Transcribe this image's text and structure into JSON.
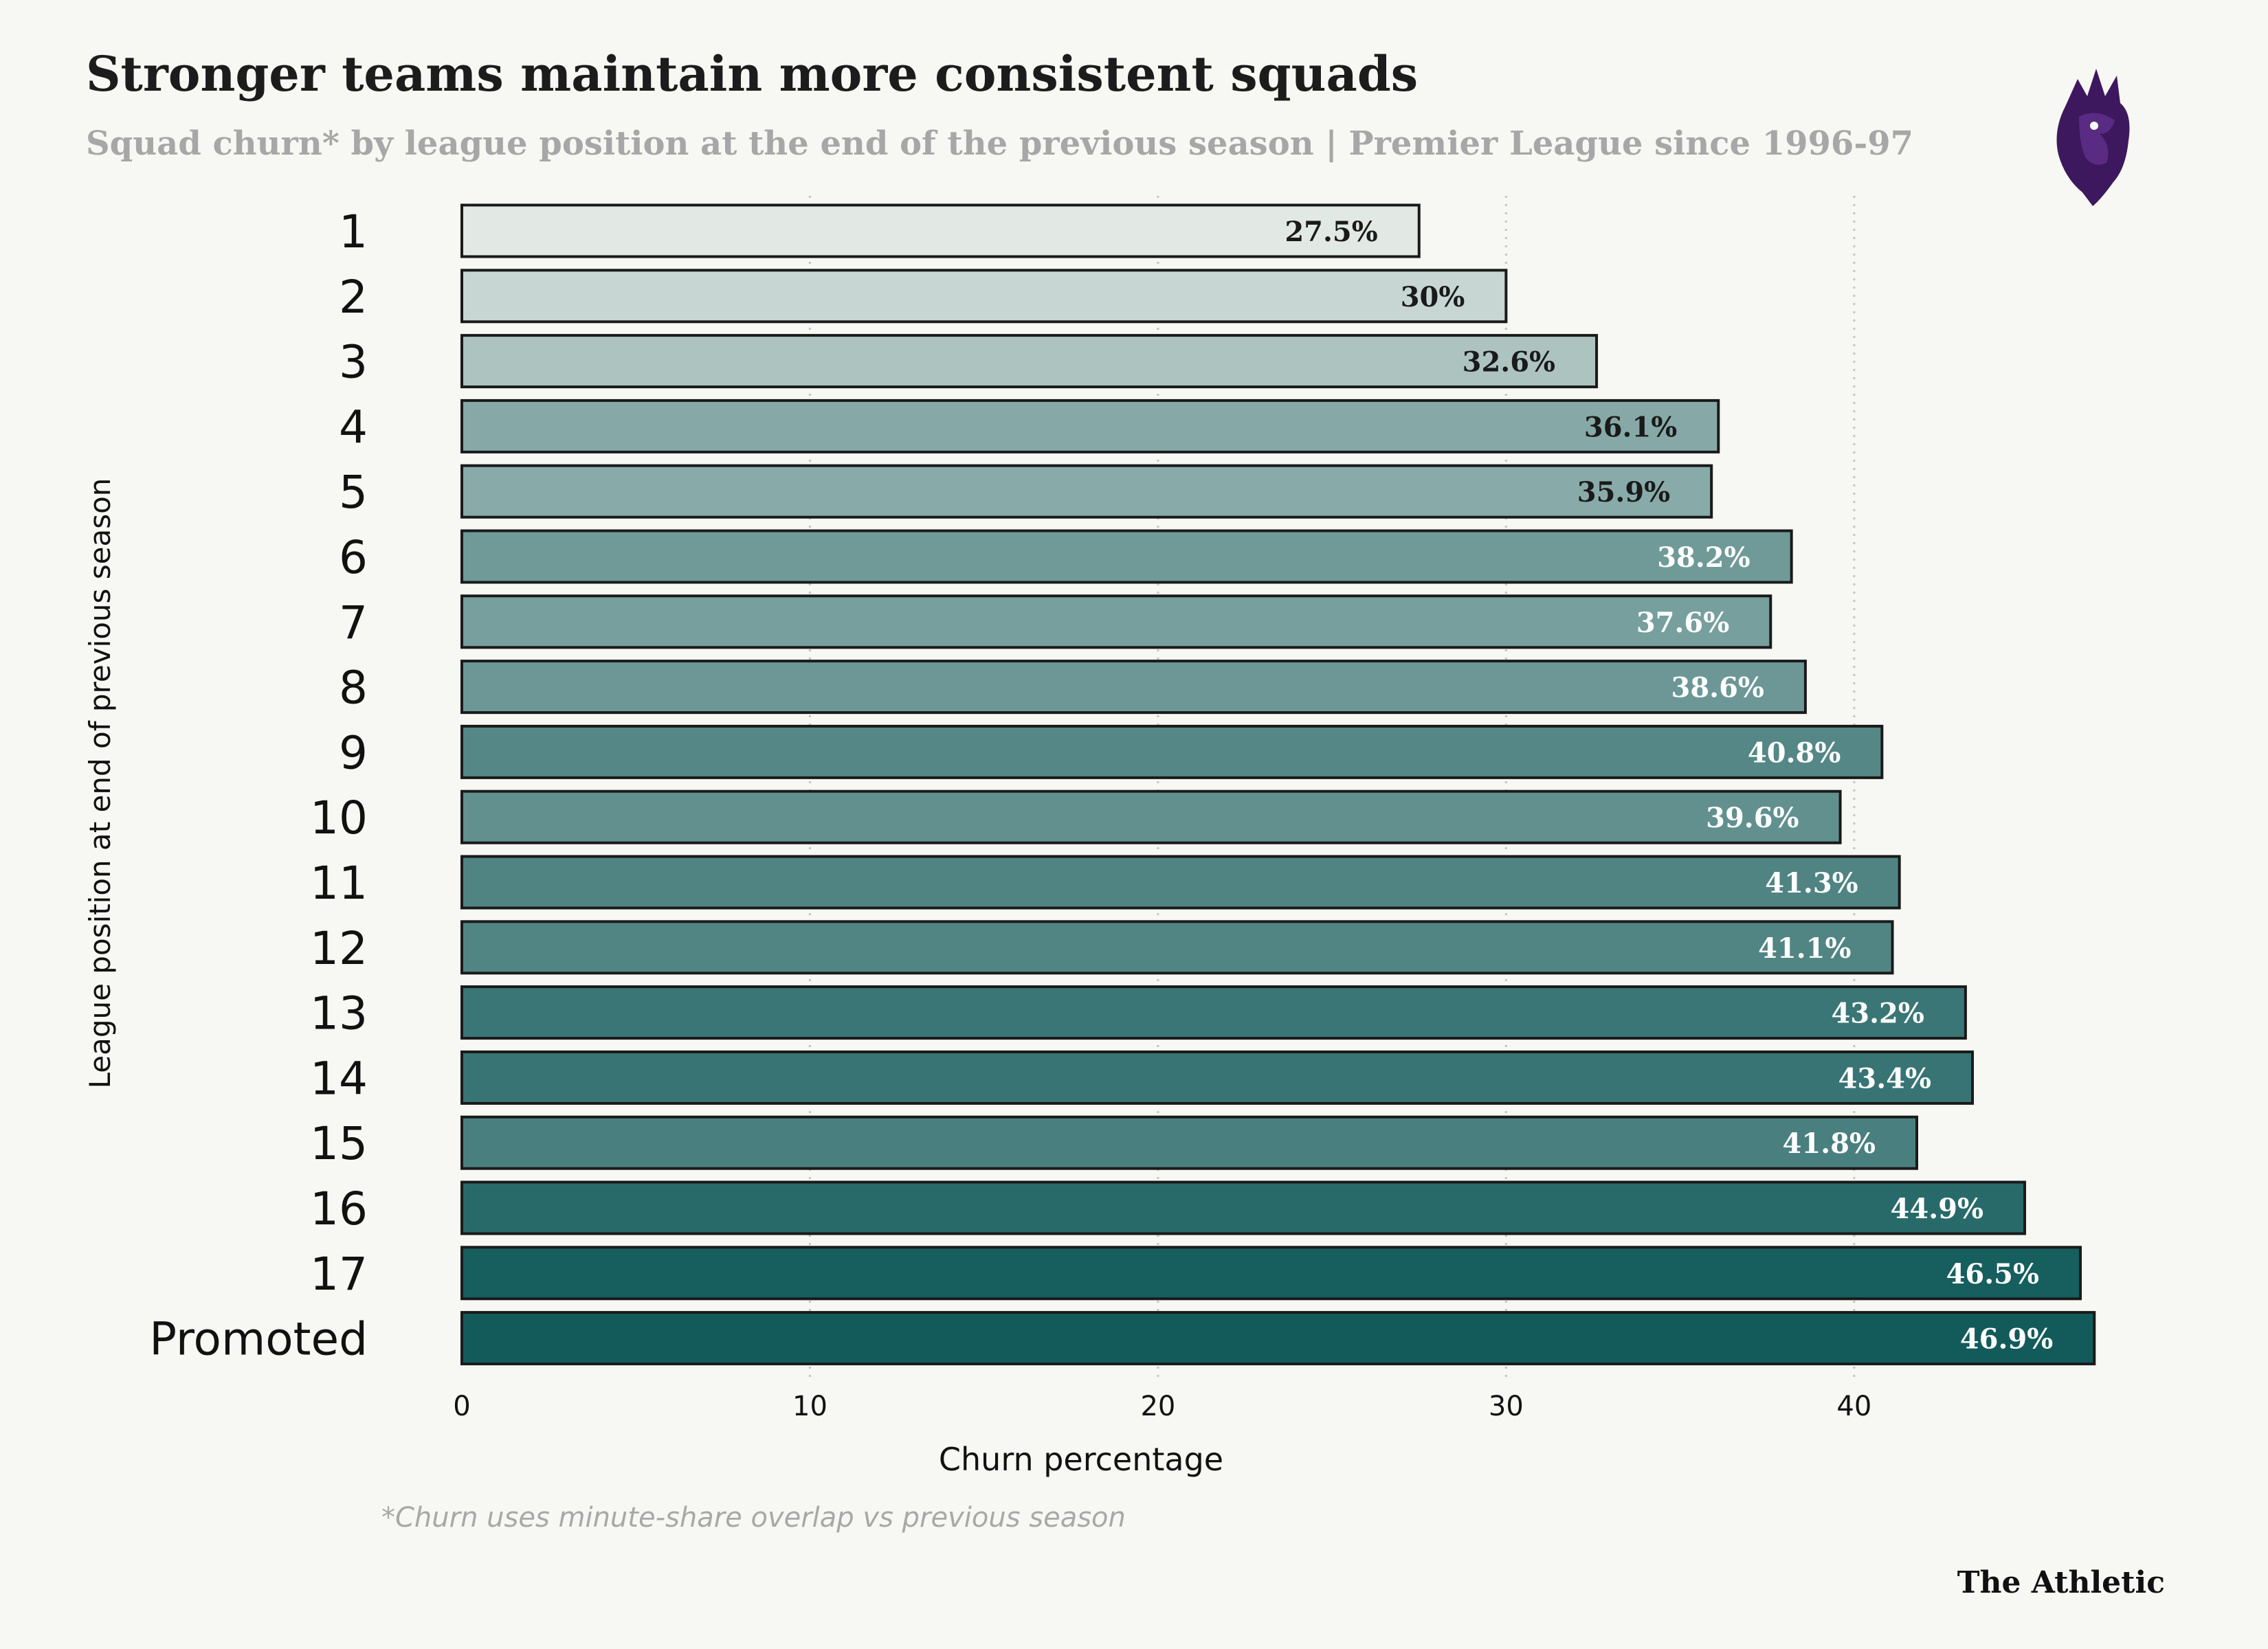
{
  "header": {
    "title": "Stronger teams maintain more consistent squads",
    "subtitle": "Squad churn* by league position at the end of the previous season | Premier League since 1996-97"
  },
  "footer": {
    "footnote": "*Churn uses minute-share overlap vs previous season",
    "brand": "The Athletic"
  },
  "colors": {
    "background": "#f7f7f3",
    "bar_light": "#e2e8e4",
    "bar_dark": "#135b5b",
    "bar_outline": "#1a1a1a",
    "grid": "#c4c4c4",
    "logo": "#3d185e"
  },
  "logo_icon": "premier-league-lion-icon",
  "chart_data": {
    "type": "bar",
    "orientation": "horizontal",
    "categories": [
      "1",
      "2",
      "3",
      "4",
      "5",
      "6",
      "7",
      "8",
      "9",
      "10",
      "11",
      "12",
      "13",
      "14",
      "15",
      "16",
      "17",
      "Promoted"
    ],
    "values": [
      27.5,
      30,
      32.6,
      36.1,
      35.9,
      38.2,
      37.6,
      38.6,
      40.8,
      39.6,
      41.3,
      41.1,
      43.2,
      43.4,
      41.8,
      44.9,
      46.5,
      46.9
    ],
    "value_labels": [
      "27.5%",
      "30%",
      "32.6%",
      "36.1%",
      "35.9%",
      "38.2%",
      "37.6%",
      "38.6%",
      "40.8%",
      "39.6%",
      "41.3%",
      "41.1%",
      "43.2%",
      "43.4%",
      "41.8%",
      "44.9%",
      "46.5%",
      "46.9%"
    ],
    "xlabel": "Churn percentage",
    "ylabel": "League position at end of previous season",
    "xlim": [
      0,
      48
    ],
    "xticks": [
      0,
      10,
      20,
      30,
      40
    ],
    "xtick_labels": [
      "0",
      "10",
      "20",
      "30",
      "40"
    ],
    "grid": "vertical dotted"
  }
}
